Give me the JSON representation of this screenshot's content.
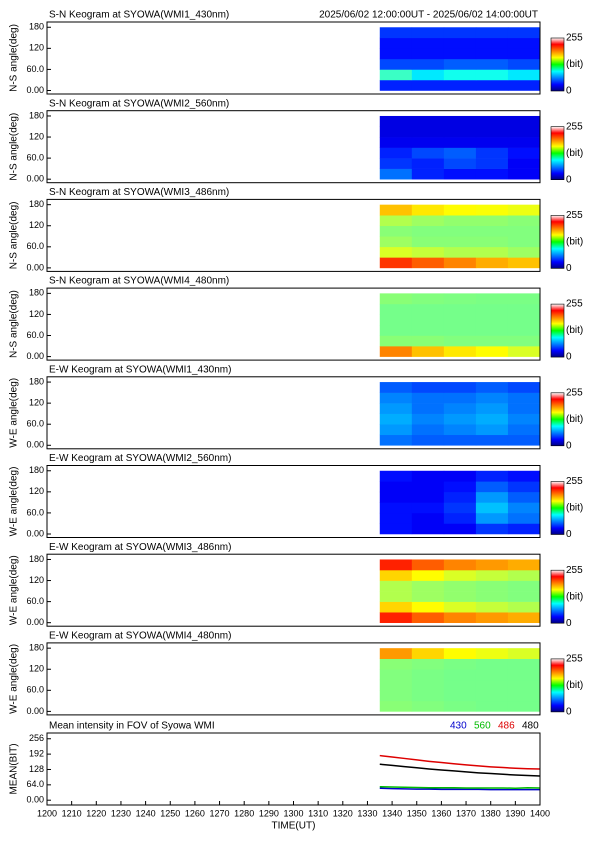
{
  "chart_data": [
    {
      "type": "heatmap",
      "title": "S-N Keogram at SYOWA(WMI1_430nm)",
      "subtitle": "2025/06/02 12:00:00UT - 2025/06/02 14:00:00UT",
      "ylabel": "N-S angle(deg)",
      "xlim": [
        1200,
        1400
      ],
      "ylim": [
        -10,
        195
      ],
      "yticks": [
        {
          "value": 0,
          "label": "0.00"
        },
        {
          "value": 60,
          "label": "60.0"
        },
        120,
        180
      ],
      "x_bins": [
        1335,
        1348,
        1361,
        1374,
        1387,
        1400
      ],
      "y_bins": [
        0,
        30,
        60,
        90,
        120,
        150,
        180
      ],
      "values": [
        [
          40,
          40,
          40,
          40,
          40
        ],
        [
          110,
          90,
          100,
          100,
          90
        ],
        [
          50,
          50,
          55,
          55,
          50
        ],
        [
          35,
          35,
          35,
          35,
          35
        ],
        [
          35,
          35,
          35,
          35,
          35
        ],
        [
          45,
          45,
          45,
          45,
          45
        ]
      ],
      "colorbar": {
        "ticks": [
          0,
          255
        ],
        "label": "(bit)"
      }
    },
    {
      "type": "heatmap",
      "title": "S-N Keogram at SYOWA(WMI2_560nm)",
      "ylabel": "N-S angle(deg)",
      "xlim": [
        1200,
        1400
      ],
      "ylim": [
        -10,
        195
      ],
      "yticks": [
        {
          "value": 0,
          "label": "0.00"
        },
        {
          "value": 60,
          "label": "60.0"
        },
        120,
        180
      ],
      "x_bins": [
        1335,
        1348,
        1361,
        1374,
        1387,
        1400
      ],
      "y_bins": [
        0,
        30,
        60,
        90,
        120,
        150,
        180
      ],
      "values": [
        [
          60,
          40,
          35,
          35,
          30
        ],
        [
          45,
          40,
          50,
          45,
          30
        ],
        [
          40,
          50,
          55,
          45,
          35
        ],
        [
          28,
          28,
          28,
          28,
          28
        ],
        [
          25,
          25,
          25,
          25,
          25
        ],
        [
          25,
          25,
          25,
          25,
          25
        ]
      ],
      "colorbar": {
        "ticks": [
          0,
          255
        ],
        "label": "(bit)"
      }
    },
    {
      "type": "heatmap",
      "title": "S-N Keogram at SYOWA(WMI3_486nm)",
      "ylabel": "N-S angle(deg)",
      "xlim": [
        1200,
        1400
      ],
      "ylim": [
        -10,
        195
      ],
      "yticks": [
        {
          "value": 0,
          "label": "0.00"
        },
        {
          "value": 60,
          "label": "60.0"
        },
        120,
        180
      ],
      "x_bins": [
        1335,
        1348,
        1361,
        1374,
        1387,
        1400
      ],
      "y_bins": [
        0,
        30,
        60,
        90,
        120,
        150,
        180
      ],
      "values": [
        [
          210,
          200,
          190,
          180,
          175
        ],
        [
          150,
          145,
          140,
          140,
          135
        ],
        [
          135,
          130,
          130,
          130,
          128
        ],
        [
          130,
          128,
          128,
          128,
          128
        ],
        [
          140,
          135,
          132,
          132,
          130
        ],
        [
          175,
          165,
          160,
          158,
          155
        ]
      ],
      "colorbar": {
        "ticks": [
          0,
          255
        ],
        "label": "(bit)"
      }
    },
    {
      "type": "heatmap",
      "title": "S-N Keogram at SYOWA(WMI4_480nm)",
      "ylabel": "N-S angle(deg)",
      "xlim": [
        1200,
        1400
      ],
      "ylim": [
        -10,
        195
      ],
      "yticks": [
        {
          "value": 0,
          "label": "0.00"
        },
        {
          "value": 60,
          "label": "60.0"
        },
        120,
        180
      ],
      "x_bins": [
        1335,
        1348,
        1361,
        1374,
        1387,
        1400
      ],
      "y_bins": [
        0,
        30,
        60,
        90,
        120,
        150,
        180
      ],
      "values": [
        [
          190,
          175,
          165,
          160,
          150
        ],
        [
          130,
          130,
          128,
          128,
          128
        ],
        [
          125,
          125,
          125,
          125,
          125
        ],
        [
          125,
          125,
          125,
          125,
          125
        ],
        [
          125,
          125,
          125,
          125,
          125
        ],
        [
          130,
          128,
          127,
          126,
          126
        ]
      ],
      "colorbar": {
        "ticks": [
          0,
          255
        ],
        "label": "(bit)"
      }
    },
    {
      "type": "heatmap",
      "title": "E-W Keogram at SYOWA(WMI1_430nm)",
      "ylabel": "W-E angle(deg)",
      "xlim": [
        1200,
        1400
      ],
      "ylim": [
        -10,
        195
      ],
      "yticks": [
        {
          "value": 0,
          "label": "0.00"
        },
        {
          "value": 60,
          "label": "60.0"
        },
        120,
        180
      ],
      "x_bins": [
        1335,
        1348,
        1361,
        1374,
        1387,
        1400
      ],
      "y_bins": [
        0,
        30,
        60,
        90,
        120,
        150,
        180
      ],
      "values": [
        [
          60,
          55,
          55,
          55,
          55
        ],
        [
          70,
          60,
          65,
          70,
          60
        ],
        [
          75,
          65,
          70,
          75,
          65
        ],
        [
          70,
          60,
          65,
          70,
          60
        ],
        [
          65,
          60,
          60,
          65,
          60
        ],
        [
          55,
          50,
          50,
          55,
          50
        ]
      ],
      "colorbar": {
        "ticks": [
          0,
          255
        ],
        "label": "(bit)"
      }
    },
    {
      "type": "heatmap",
      "title": "E-W Keogram at SYOWA(WMI2_560nm)",
      "ylabel": "W-E angle(deg)",
      "xlim": [
        1200,
        1400
      ],
      "ylim": [
        -10,
        195
      ],
      "yticks": [
        {
          "value": 0,
          "label": "0.00"
        },
        {
          "value": 60,
          "label": "60.0"
        },
        120,
        180
      ],
      "x_bins": [
        1335,
        1348,
        1361,
        1374,
        1387,
        1400
      ],
      "y_bins": [
        0,
        30,
        60,
        90,
        120,
        150,
        180
      ],
      "values": [
        [
          35,
          30,
          30,
          45,
          40
        ],
        [
          35,
          30,
          40,
          70,
          60
        ],
        [
          35,
          35,
          45,
          80,
          65
        ],
        [
          30,
          30,
          40,
          70,
          55
        ],
        [
          30,
          30,
          35,
          55,
          45
        ],
        [
          35,
          30,
          30,
          40,
          35
        ]
      ],
      "colorbar": {
        "ticks": [
          0,
          255
        ],
        "label": "(bit)"
      }
    },
    {
      "type": "heatmap",
      "title": "E-W Keogram at SYOWA(WMI3_486nm)",
      "ylabel": "W-E angle(deg)",
      "xlim": [
        1200,
        1400
      ],
      "ylim": [
        -10,
        195
      ],
      "yticks": [
        {
          "value": 0,
          "label": "0.00"
        },
        {
          "value": 60,
          "label": "60.0"
        },
        120,
        180
      ],
      "x_bins": [
        1335,
        1348,
        1361,
        1374,
        1387,
        1400
      ],
      "y_bins": [
        0,
        30,
        60,
        90,
        120,
        150,
        180
      ],
      "values": [
        [
          215,
          200,
          190,
          185,
          180
        ],
        [
          170,
          160,
          150,
          145,
          140
        ],
        [
          140,
          135,
          132,
          130,
          128
        ],
        [
          140,
          135,
          132,
          130,
          128
        ],
        [
          170,
          160,
          150,
          145,
          140
        ],
        [
          215,
          200,
          190,
          185,
          180
        ]
      ],
      "colorbar": {
        "ticks": [
          0,
          255
        ],
        "label": "(bit)"
      }
    },
    {
      "type": "heatmap",
      "title": "E-W Keogram at SYOWA(WMI4_480nm)",
      "ylabel": "W-E angle(deg)",
      "xlim": [
        1200,
        1400
      ],
      "ylim": [
        -10,
        195
      ],
      "yticks": [
        {
          "value": 0,
          "label": "0.00"
        },
        {
          "value": 60,
          "label": "60.0"
        },
        120,
        180
      ],
      "x_bins": [
        1335,
        1348,
        1361,
        1374,
        1387,
        1400
      ],
      "y_bins": [
        0,
        30,
        60,
        90,
        120,
        150,
        180
      ],
      "values": [
        [
          130,
          128,
          126,
          125,
          125
        ],
        [
          128,
          126,
          125,
          125,
          125
        ],
        [
          128,
          126,
          125,
          125,
          125
        ],
        [
          128,
          126,
          125,
          125,
          125
        ],
        [
          130,
          128,
          126,
          125,
          125
        ],
        [
          185,
          170,
          160,
          155,
          150
        ]
      ],
      "colorbar": {
        "ticks": [
          0,
          255
        ],
        "label": "(bit)"
      }
    },
    {
      "type": "line",
      "title": "Mean intensity in FOV of Syowa WMI",
      "ylabel": "MEAN(BIT)",
      "xlabel": "TIME(UT)",
      "xlim": [
        1200,
        1400
      ],
      "ylim": [
        -20,
        280
      ],
      "xticks": [
        1200,
        1210,
        1220,
        1230,
        1240,
        1250,
        1260,
        1270,
        1280,
        1290,
        1300,
        1310,
        1320,
        1330,
        1340,
        1350,
        1360,
        1370,
        1380,
        1390,
        1400
      ],
      "yticks": [
        {
          "value": 0,
          "label": "0.00"
        },
        {
          "value": 64,
          "label": "64.0"
        },
        128,
        192,
        256
      ],
      "x": [
        1335,
        1340,
        1345,
        1350,
        1355,
        1360,
        1365,
        1370,
        1375,
        1380,
        1385,
        1390,
        1395,
        1400
      ],
      "series": [
        {
          "name": "430",
          "color": "#0000cc",
          "values": [
            50,
            48,
            47,
            46,
            46,
            45,
            45,
            45,
            45,
            44,
            44,
            44,
            44,
            44
          ]
        },
        {
          "name": "560",
          "color": "#00bb00",
          "values": [
            56,
            55,
            54,
            53,
            52,
            52,
            52,
            51,
            51,
            51,
            51,
            50,
            52,
            51
          ]
        },
        {
          "name": "486",
          "color": "#dd0000",
          "values": [
            186,
            180,
            174,
            168,
            162,
            157,
            152,
            147,
            143,
            139,
            136,
            133,
            131,
            130
          ]
        },
        {
          "name": "480",
          "color": "#000000",
          "values": [
            150,
            145,
            140,
            135,
            130,
            126,
            122,
            118,
            114,
            111,
            108,
            105,
            103,
            101
          ]
        }
      ]
    }
  ]
}
